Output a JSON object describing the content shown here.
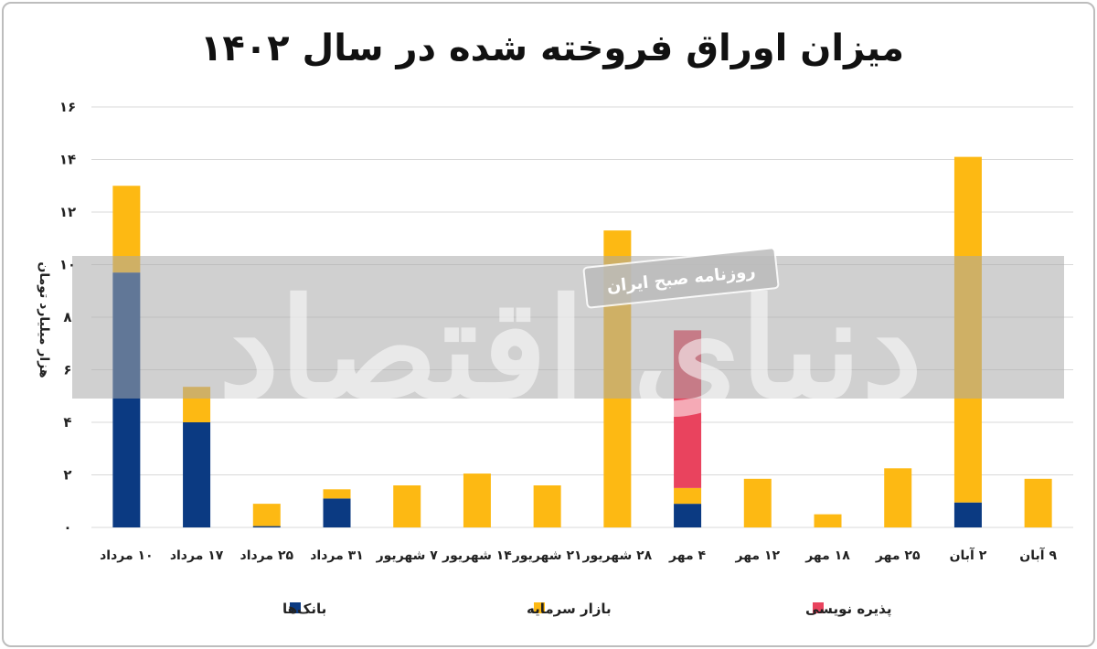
{
  "chart_data": {
    "type": "bar",
    "stacked": true,
    "title": "میزان اوراق فروخته شده در سال ۱۴۰۲",
    "ylabel": "هزار میلیارد تومان",
    "xlabel": "",
    "ylim": [
      0,
      16
    ],
    "yticks": [
      "۰",
      "۲",
      "۴",
      "۶",
      "۸",
      "۱۰",
      "۱۲",
      "۱۴",
      "۱۶"
    ],
    "ytick_values": [
      0,
      2,
      4,
      6,
      8,
      10,
      12,
      14,
      16
    ],
    "grid": true,
    "legend_position": "bottom",
    "categories": [
      "۱۰ مرداد",
      "۱۷ مرداد",
      "۲۵ مرداد",
      "۳۱ مرداد",
      "۷ شهریور",
      "۱۴ شهریور",
      "۲۱ شهریور",
      "۲۸ شهریور",
      "۴ مهر",
      "۱۲ مهر",
      "۱۸ مهر",
      "۲۵ مهر",
      "۲ آبان",
      "۹ آبان"
    ],
    "series": [
      {
        "name": "بانک‌ها",
        "color": "#0b3a82",
        "values": [
          9.7,
          4.0,
          0.05,
          1.1,
          0,
          0,
          0,
          0,
          0.9,
          0,
          0,
          0,
          0.95,
          0
        ]
      },
      {
        "name": "بازار سرمایه",
        "color": "#fdb913",
        "values": [
          3.3,
          1.35,
          0.85,
          0.35,
          1.6,
          2.05,
          1.6,
          11.3,
          0.6,
          1.85,
          0.5,
          2.25,
          13.15,
          1.85
        ]
      },
      {
        "name": "پذیره نویسی",
        "color": "#e9435e",
        "values": [
          0,
          0,
          0,
          0,
          0,
          0,
          0,
          0,
          6.0,
          0,
          0,
          0,
          0,
          0
        ]
      }
    ]
  },
  "watermark": {
    "script_text": "دنیای اقتصاد",
    "stamp_text": "روزنامه صبح ایران"
  }
}
